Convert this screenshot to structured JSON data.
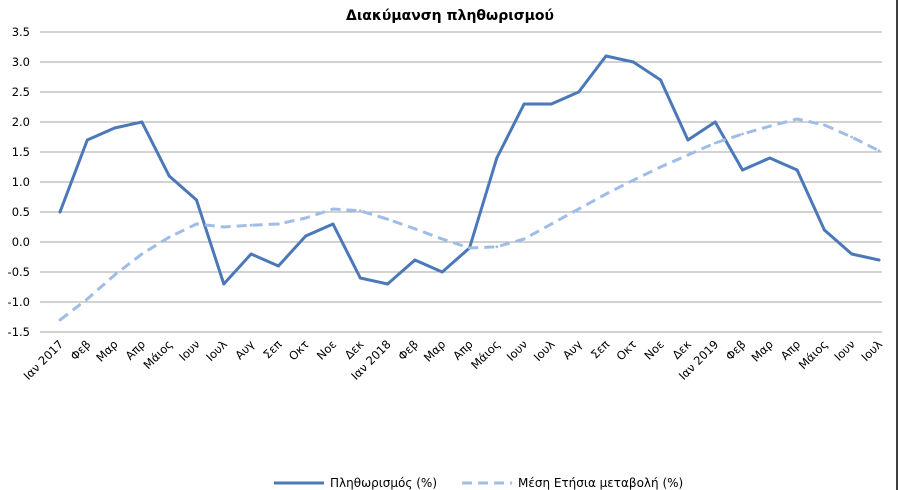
{
  "chart_data": {
    "type": "line",
    "title": "Διακύμανση πληθωρισμού",
    "xlabel": "",
    "ylabel": "",
    "categories": [
      "Ιαν 2017",
      "Φεβ",
      "Μαρ",
      "Απρ",
      "Μάιος",
      "Ιουν",
      "Ιουλ",
      "Αυγ",
      "Σεπ",
      "Οκτ",
      "Νοε",
      "Δεκ",
      "Ιαν 2018",
      "Φεβ",
      "Μαρ",
      "Απρ",
      "Μάιος",
      "Ιουν",
      "Ιουλ",
      "Αυγ",
      "Σεπ",
      "Οκτ",
      "Νοε",
      "Δεκ",
      "Ιαν 2019",
      "Φεβ",
      "Μαρ",
      "Απρ",
      "Μάιος",
      "Ιουν",
      "Ιουλ"
    ],
    "ylim": [
      -1.5,
      3.5
    ],
    "yticks": [
      "-1.5",
      "-1.0",
      "-0.5",
      "0.0",
      "0.5",
      "1.0",
      "1.5",
      "2.0",
      "2.5",
      "3.0",
      "3.5"
    ],
    "grid": true,
    "legend_position": "bottom",
    "series": [
      {
        "name": "Πληθωρισμός (%)",
        "style": "solid",
        "color": "#4a78b8",
        "values": [
          0.5,
          1.7,
          1.9,
          2.0,
          1.1,
          0.7,
          -0.7,
          -0.2,
          -0.4,
          0.1,
          0.3,
          -0.6,
          -0.7,
          -0.3,
          -0.5,
          -0.1,
          1.4,
          2.3,
          2.3,
          2.5,
          3.1,
          3.0,
          2.7,
          1.7,
          2.0,
          1.2,
          1.4,
          1.2,
          0.2,
          -0.2,
          -0.3
        ]
      },
      {
        "name": "Μέση Ετήσια μεταβολή (%)",
        "style": "dashed",
        "color": "#9fbde6",
        "values": [
          -1.3,
          -0.95,
          -0.55,
          -0.2,
          0.08,
          0.3,
          0.25,
          0.28,
          0.3,
          0.4,
          0.55,
          0.52,
          0.38,
          0.22,
          0.05,
          -0.1,
          -0.08,
          0.05,
          0.3,
          0.55,
          0.8,
          1.03,
          1.25,
          1.45,
          1.65,
          1.8,
          1.93,
          2.05,
          1.95,
          1.75,
          1.52
        ]
      }
    ]
  }
}
